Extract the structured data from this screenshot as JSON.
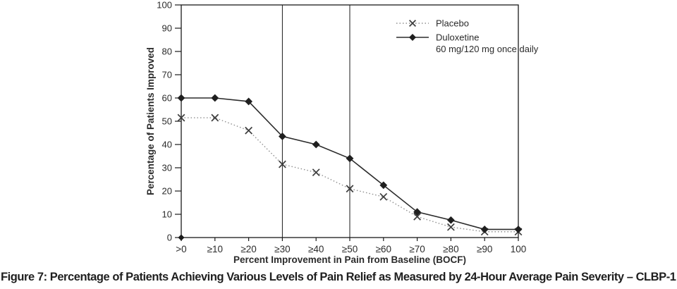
{
  "figure": {
    "caption": "Figure 7: Percentage of Patients Achieving Various Levels of Pain Relief as Measured by 24-Hour Average Pain Severity – CLBP-1"
  },
  "chart_data": {
    "type": "line",
    "title": "",
    "xlabel": "Percent Improvement in Pain from Baseline (BOCF)",
    "ylabel": "Percentage of Patients Improved",
    "categories": [
      ">0",
      "≥10",
      "≥20",
      "≥30",
      "≥40",
      "≥50",
      "≥60",
      "≥70",
      "≥80",
      "≥90",
      "100"
    ],
    "yticks": [
      0,
      10,
      20,
      30,
      40,
      50,
      60,
      70,
      80,
      90,
      100
    ],
    "ylim": [
      0,
      100
    ],
    "grid": false,
    "frame": true,
    "reference_line_categories": [
      "≥30",
      "≥50"
    ],
    "origin_marker": {
      "shape": "diamond",
      "category": ">0",
      "value": 0
    },
    "legend_position": "top-right-inside",
    "series": [
      {
        "name": "Placebo",
        "legend_lines": [
          "Placebo"
        ],
        "marker": "x",
        "line_style": "dotted",
        "line_color": "#8f8f8f",
        "marker_color": "#3d3d3d",
        "values": [
          51.5,
          51.5,
          46,
          31.5,
          28,
          21,
          17.5,
          9,
          4.5,
          2.5,
          2.5
        ]
      },
      {
        "name": "Duloxetine 60 mg/120 mg once daily",
        "legend_lines": [
          "Duloxetine",
          "60 mg/120 mg once daily"
        ],
        "marker": "diamond",
        "line_style": "solid",
        "line_color": "#2b2b2b",
        "marker_color": "#1f1f1f",
        "values": [
          60,
          60,
          58.5,
          43.5,
          40,
          34,
          22.5,
          11,
          7.5,
          3.5,
          3.5
        ]
      }
    ],
    "colors": {
      "axis": "#1a1a1a",
      "text": "#2b2b2b"
    }
  }
}
